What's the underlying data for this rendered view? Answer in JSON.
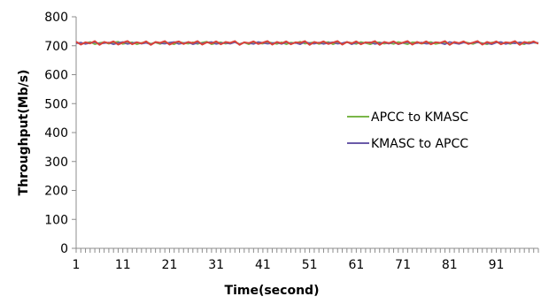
{
  "chart_data": {
    "type": "line",
    "title": "",
    "xlabel": "Time(second)",
    "ylabel": "Throughput(Mb/s)",
    "xlim": [
      1,
      100
    ],
    "ylim": [
      0,
      800
    ],
    "y_ticks": [
      0,
      100,
      200,
      300,
      400,
      500,
      600,
      700,
      800
    ],
    "x_tick_labels": [
      "1",
      "11",
      "21",
      "31",
      "41",
      "51",
      "61",
      "71",
      "81",
      "91"
    ],
    "grid": false,
    "legend_position": "right",
    "x": [
      1,
      2,
      3,
      4,
      5,
      6,
      7,
      8,
      9,
      10,
      11,
      12,
      13,
      14,
      15,
      16,
      17,
      18,
      19,
      20,
      21,
      22,
      23,
      24,
      25,
      26,
      27,
      28,
      29,
      30,
      31,
      32,
      33,
      34,
      35,
      36,
      37,
      38,
      39,
      40,
      41,
      42,
      43,
      44,
      45,
      46,
      47,
      48,
      49,
      50,
      51,
      52,
      53,
      54,
      55,
      56,
      57,
      58,
      59,
      60,
      61,
      62,
      63,
      64,
      65,
      66,
      67,
      68,
      69,
      70,
      71,
      72,
      73,
      74,
      75,
      76,
      77,
      78,
      79,
      80,
      81,
      82,
      83,
      84,
      85,
      86,
      87,
      88,
      89,
      90,
      91,
      92,
      93,
      94,
      95,
      96,
      97,
      98,
      99,
      100
    ],
    "series": [
      {
        "name": "APCC to KMASC",
        "color": "#7ab648",
        "values": [
          712,
          706,
          709,
          713,
          705,
          710,
          712,
          707,
          711,
          714,
          706,
          709,
          712,
          705,
          710,
          713,
          707,
          711,
          706,
          712,
          709,
          705,
          713,
          710,
          707,
          712,
          706,
          711,
          714,
          705,
          709,
          712,
          707,
          710,
          713,
          706,
          711,
          705,
          712,
          709,
          707,
          713,
          710,
          706,
          712,
          705,
          711,
          709,
          714,
          707,
          710,
          712,
          706,
          709,
          713,
          705,
          711,
          707,
          712,
          710,
          706,
          713,
          709,
          705,
          711,
          712,
          707,
          710,
          706,
          713,
          709,
          705,
          712,
          711,
          707,
          710,
          713,
          706,
          709,
          712,
          705,
          711,
          707,
          713,
          710,
          706,
          712,
          709,
          705,
          711,
          713,
          707,
          710,
          706,
          712,
          709,
          705,
          713,
          711,
          708
        ]
      },
      {
        "name": "KMASC to APCC",
        "color": "#6a5aa8",
        "values": [
          708,
          711,
          706,
          710,
          712,
          707,
          709,
          711,
          705,
          710,
          713,
          706,
          709,
          712,
          707,
          710,
          705,
          712,
          709,
          707,
          711,
          713,
          706,
          709,
          712,
          705,
          710,
          708,
          711,
          713,
          706,
          709,
          710,
          707,
          712,
          705,
          711,
          709,
          706,
          713,
          710,
          707,
          709,
          711,
          706,
          712,
          708,
          710,
          705,
          713,
          709,
          707,
          711,
          706,
          710,
          712,
          707,
          709,
          713,
          705,
          711,
          708,
          710,
          712,
          706,
          709,
          711,
          707,
          713,
          705,
          710,
          712,
          706,
          709,
          711,
          707,
          708,
          712,
          710,
          705,
          713,
          709,
          706,
          711,
          708,
          710,
          712,
          707,
          709,
          705,
          711,
          713,
          706,
          710,
          708,
          712,
          709,
          707,
          711,
          710
        ]
      },
      {
        "name": "",
        "color": "#d9433a",
        "values": [
          714,
          704,
          712,
          708,
          716,
          703,
          713,
          709,
          715,
          704,
          711,
          716,
          705,
          712,
          708,
          715,
          703,
          713,
          710,
          716,
          704,
          711,
          715,
          706,
          713,
          709,
          716,
          704,
          712,
          708,
          715,
          705,
          713,
          710,
          716,
          703,
          712,
          709,
          715,
          706,
          711,
          716,
          704,
          713,
          708,
          715,
          705,
          712,
          710,
          716,
          703,
          713,
          709,
          715,
          706,
          711,
          716,
          704,
          713,
          708,
          715,
          705,
          712,
          710,
          716,
          703,
          713,
          709,
          715,
          706,
          711,
          716,
          704,
          713,
          708,
          715,
          705,
          712,
          710,
          716,
          703,
          713,
          709,
          715,
          706,
          711,
          716,
          704,
          713,
          708,
          715,
          705,
          712,
          710,
          716,
          703,
          713,
          709,
          715,
          707
        ]
      }
    ]
  }
}
